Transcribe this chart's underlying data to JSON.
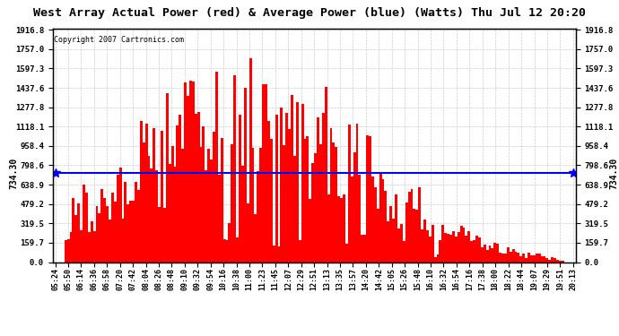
{
  "title": "West Array Actual Power (red) & Average Power (blue) (Watts) Thu Jul 12 20:20",
  "copyright": "Copyright 2007 Cartronics.com",
  "avg_power": 734.3,
  "y_max": 1916.8,
  "y_ticks": [
    0.0,
    159.7,
    319.5,
    479.2,
    638.9,
    798.6,
    958.4,
    1118.1,
    1277.8,
    1437.6,
    1597.3,
    1757.0,
    1916.8
  ],
  "bg_color": "#ffffff",
  "grid_color": "#cccccc",
  "bar_color": "#ff0000",
  "avg_line_color": "#0000ff",
  "title_bg": "#d0d0d0",
  "time_labels": [
    "05:24",
    "05:50",
    "06:14",
    "06:36",
    "06:58",
    "07:20",
    "07:42",
    "08:04",
    "08:26",
    "08:48",
    "09:10",
    "09:32",
    "09:54",
    "10:16",
    "10:38",
    "11:00",
    "11:23",
    "11:45",
    "12:07",
    "12:29",
    "12:51",
    "13:13",
    "13:35",
    "13:57",
    "14:20",
    "14:42",
    "15:05",
    "15:26",
    "15:48",
    "16:10",
    "16:32",
    "16:54",
    "17:16",
    "17:38",
    "18:00",
    "18:22",
    "18:44",
    "19:07",
    "19:29",
    "19:51",
    "20:13"
  ]
}
